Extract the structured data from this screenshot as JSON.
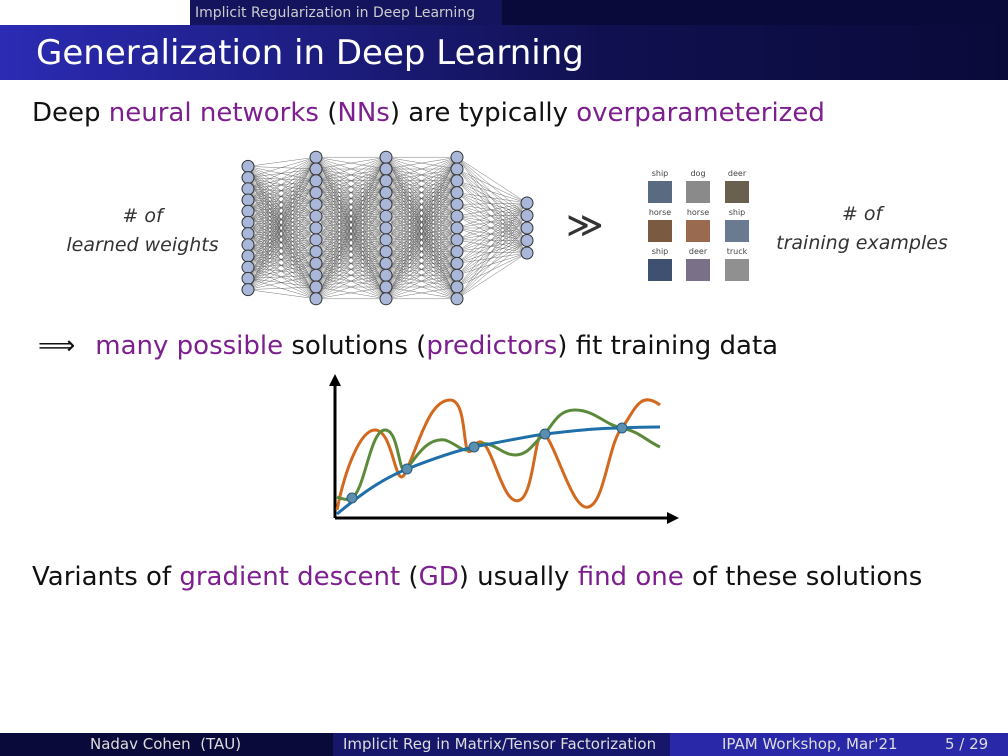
{
  "header": {
    "section": "Implicit Regularization in Deep Learning",
    "title": "Generalization in Deep Learning"
  },
  "line1": {
    "parts": [
      "Deep ",
      "neural networks",
      " (",
      "NNs",
      ") are typically ",
      "overparameterized"
    ]
  },
  "left_label": [
    "# of",
    "learned weights"
  ],
  "much_greater": "≫",
  "image_labels": [
    "ship",
    "dog",
    "deer",
    "horse",
    "horse",
    "ship",
    "ship",
    "deer",
    "truck"
  ],
  "right_label": [
    "# of",
    "training examples"
  ],
  "line2": {
    "arrow": "⟹",
    "parts": [
      "many possible",
      " solutions (",
      "predictors",
      ") fit training data"
    ]
  },
  "line3": {
    "parts": [
      "Variants of ",
      "gradient descent",
      " (",
      "GD",
      ") usually ",
      "find one",
      " of these solutions"
    ]
  },
  "footer": {
    "author": "Nadav Cohen  (TAU)",
    "talk": "Implicit Reg in Matrix/Tensor Factorization",
    "venue": "IPAM Workshop, Mar'21",
    "page": "5 / 29"
  }
}
